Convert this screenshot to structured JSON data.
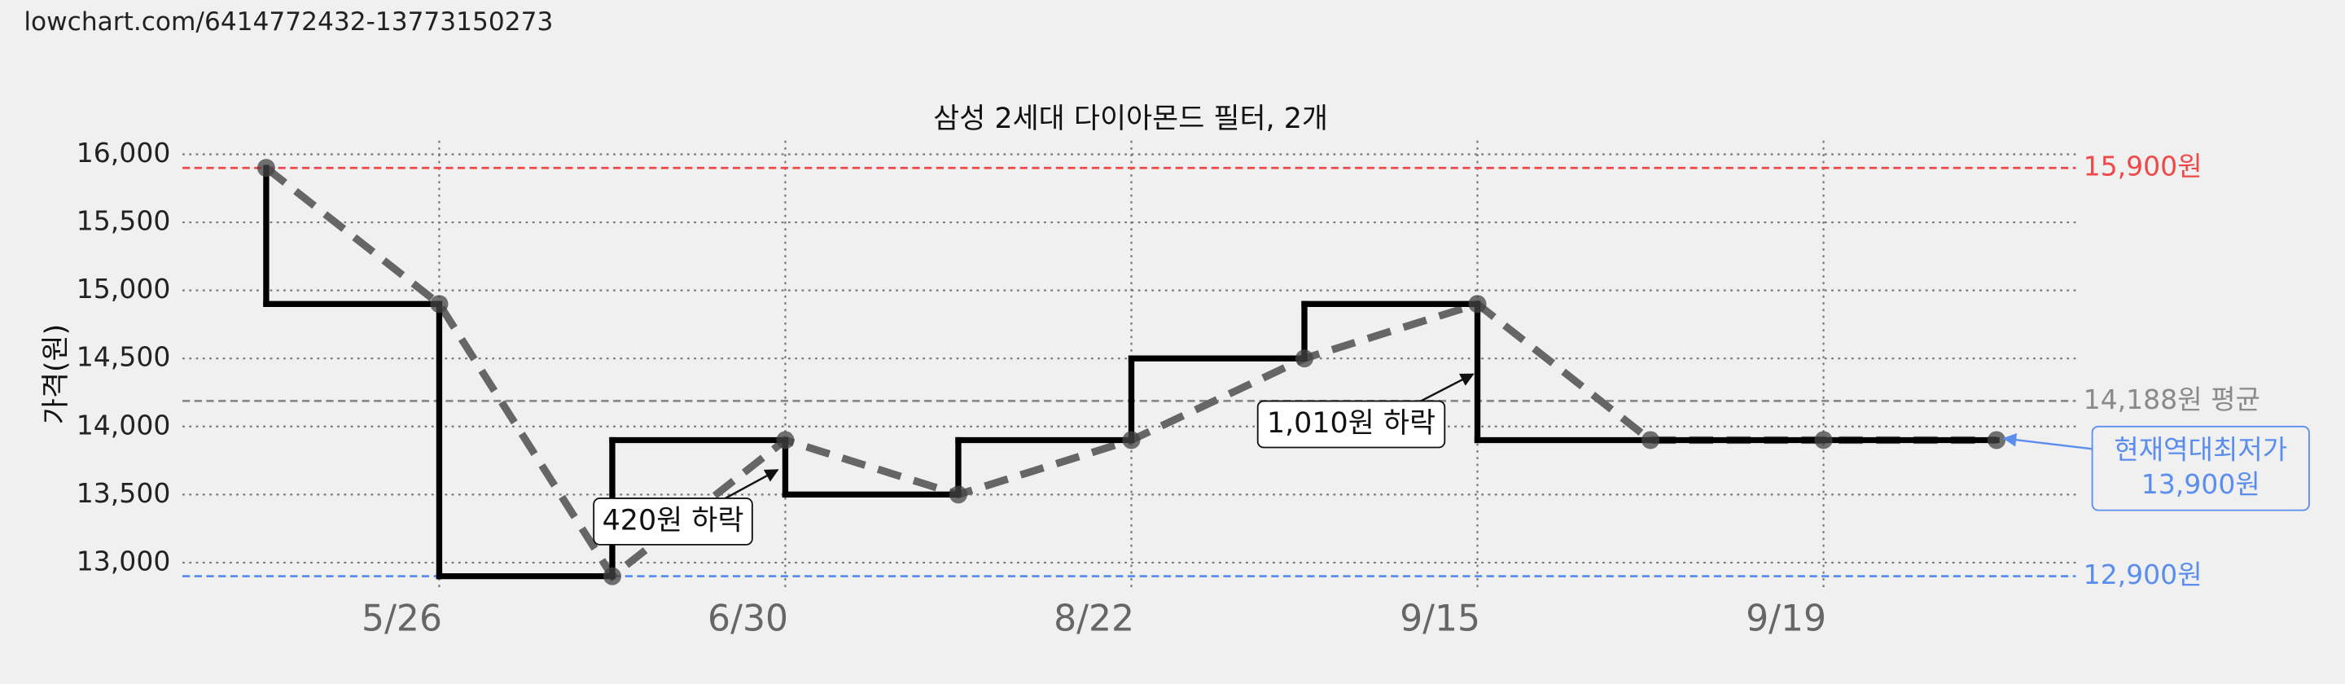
{
  "header": {
    "url": "lowchart.com/6414772432-13773150273"
  },
  "chart_data": {
    "type": "line",
    "title": "삼성 2세대 다이아몬드 필터, 2개",
    "y_label": "가격(원)",
    "categories": [
      null,
      "5/26",
      null,
      "6/30",
      null,
      "8/22",
      null,
      "9/15",
      null,
      "9/19",
      null
    ],
    "values": [
      15900,
      14900,
      12900,
      13900,
      13500,
      13900,
      14500,
      14900,
      13900,
      13900,
      13900
    ],
    "color": "#000000",
    "ylim": [
      12800,
      16100
    ],
    "yticks": [
      {
        "value": 13000,
        "label": "13,000"
      },
      {
        "value": 13500,
        "label": "13,500"
      },
      {
        "value": 14000,
        "label": "14,000"
      },
      {
        "value": 14500,
        "label": "14,500"
      },
      {
        "value": 15000,
        "label": "15,000"
      },
      {
        "value": 15500,
        "label": "15,500"
      },
      {
        "value": 16000,
        "label": "16,000"
      }
    ],
    "grid": true,
    "reference_lines": [
      {
        "value": 15900,
        "label": "15,900원",
        "color": "#f04848"
      },
      {
        "value": 14188,
        "label": "14,188원 평균",
        "color": "#8a8a8a"
      },
      {
        "value": 12900,
        "label": "12,900원",
        "color": "#5b8def"
      }
    ],
    "annotations": [
      {
        "lines": [
          "420원 하락"
        ]
      },
      {
        "lines": [
          "1,010원 하락"
        ]
      },
      {
        "lines": [
          "현재역대최저가",
          "13,900원"
        ],
        "color": "#5b8def"
      }
    ]
  }
}
